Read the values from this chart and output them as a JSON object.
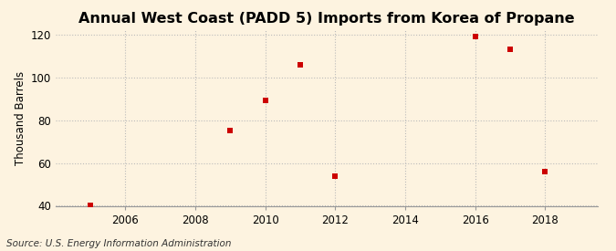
{
  "title": "Annual West Coast (PADD 5) Imports from Korea of Propane",
  "ylabel": "Thousand Barrels",
  "source": "Source: U.S. Energy Information Administration",
  "x_data": [
    2005,
    2009,
    2010,
    2011,
    2012,
    2016,
    2017,
    2018
  ],
  "y_data": [
    40,
    75,
    89,
    106,
    54,
    119,
    113,
    56
  ],
  "xlim": [
    2004.0,
    2019.5
  ],
  "ylim": [
    40,
    122
  ],
  "yticks": [
    40,
    60,
    80,
    100,
    120
  ],
  "xticks": [
    2006,
    2008,
    2010,
    2012,
    2014,
    2016,
    2018
  ],
  "marker_color": "#cc0000",
  "marker": "s",
  "marker_size": 4,
  "background_color": "#fdf3e0",
  "grid_color": "#bbbbbb",
  "title_fontsize": 11.5,
  "label_fontsize": 8.5,
  "tick_fontsize": 8.5,
  "source_fontsize": 7.5
}
